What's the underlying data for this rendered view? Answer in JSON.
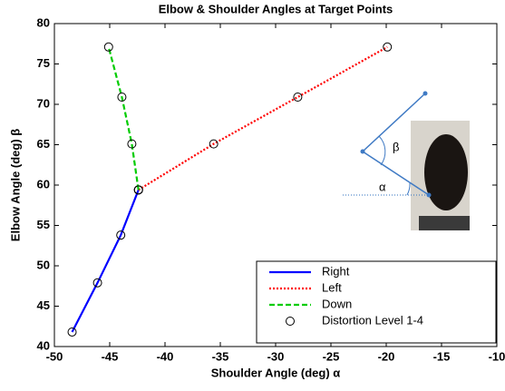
{
  "chart_data": {
    "type": "line",
    "title": "Elbow & Shoulder Angles at Target Points",
    "x_label": "Shoulder Angle (deg)  α",
    "y_label": "Elbow Angle (deg)  β",
    "xlim": [
      -50,
      -10
    ],
    "xticks": [
      -50,
      -45,
      -40,
      -35,
      -30,
      -25,
      -20,
      -15,
      -10
    ],
    "ylim": [
      40,
      80
    ],
    "yticks": [
      40,
      45,
      50,
      55,
      60,
      65,
      70,
      75,
      80
    ],
    "series": [
      {
        "name": "Right",
        "color": "#0000ff",
        "dash": "solid",
        "x": [
          -48.4,
          -46.1,
          -44.0,
          -42.4
        ],
        "values": [
          41.8,
          47.9,
          53.8,
          59.4
        ]
      },
      {
        "name": "Left",
        "color": "#ff0000",
        "dash": "dotted",
        "x": [
          -42.4,
          -35.6,
          -28.0,
          -19.9
        ],
        "values": [
          59.4,
          65.1,
          70.9,
          77.1
        ]
      },
      {
        "name": "Down",
        "color": "#00cc00",
        "dash": "dashed",
        "x": [
          -42.4,
          -43.0,
          -43.9,
          -45.1
        ],
        "values": [
          59.4,
          65.1,
          70.9,
          77.1
        ]
      }
    ],
    "marker_legend": "Distortion Level 1-4",
    "legend": "lower right",
    "inset_labels": [
      "β",
      "α"
    ]
  }
}
